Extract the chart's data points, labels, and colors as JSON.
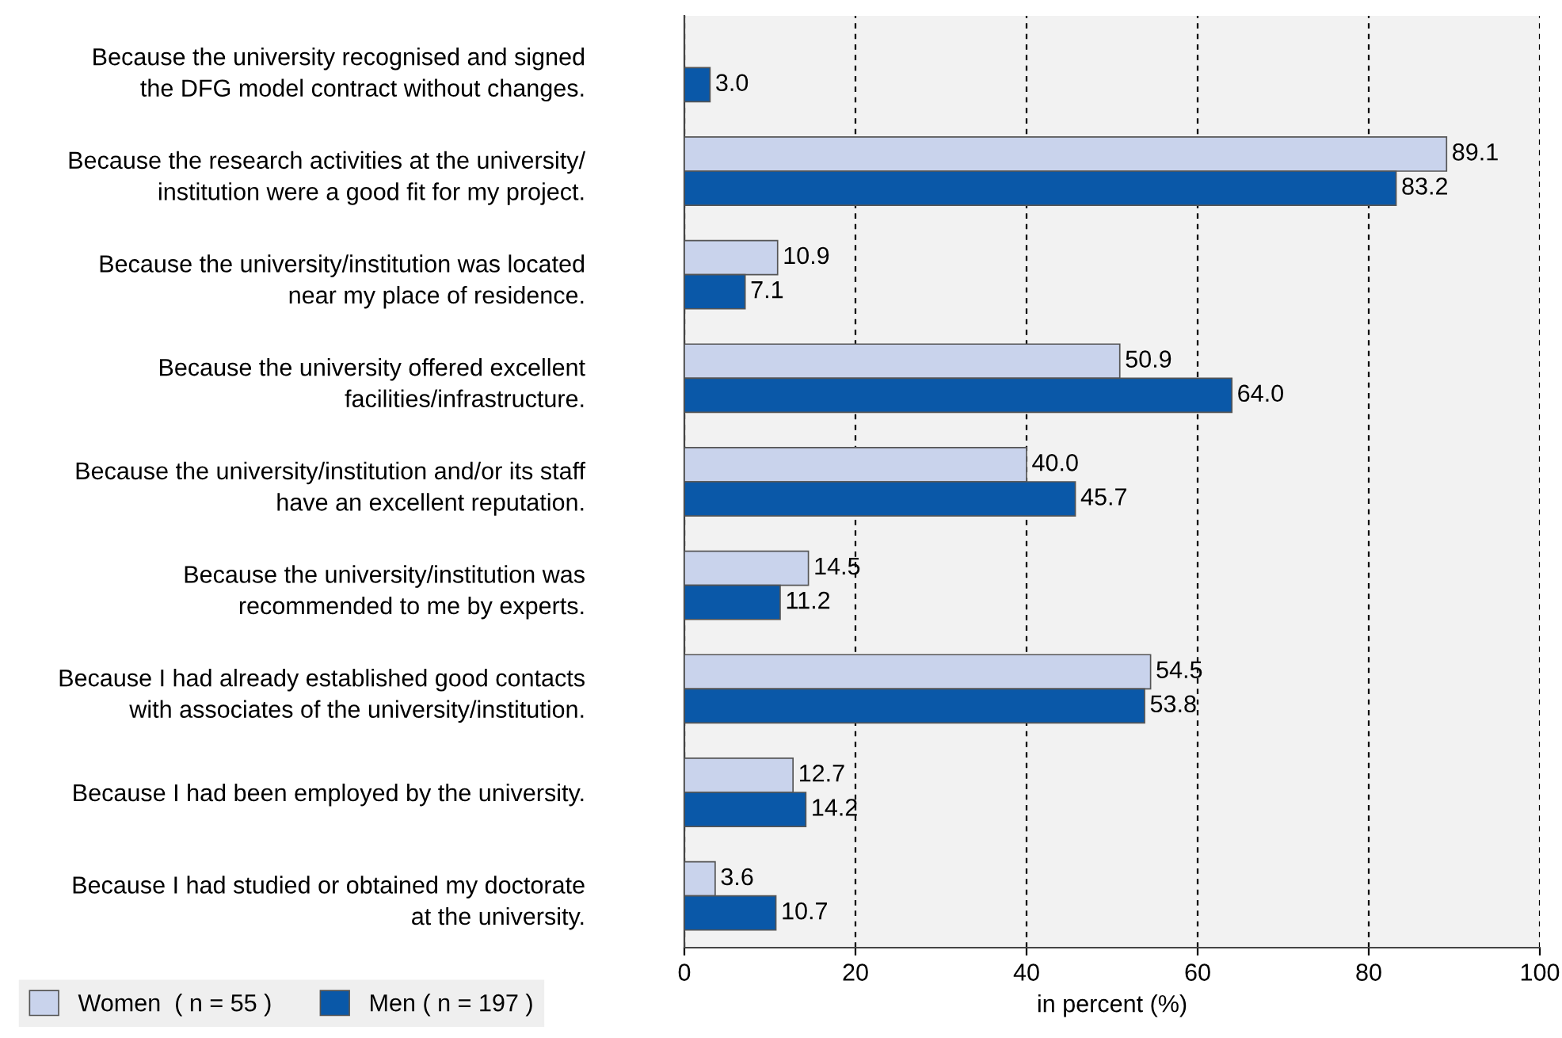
{
  "chart_data": {
    "type": "bar",
    "orientation": "horizontal",
    "categories": [
      "Because the university recognised and signed\nthe DFG model contract without changes.",
      "Because the research activities at the university/\ninstitution were a good fit for my project.",
      "Because the university/institution was located\nnear my place of residence.",
      "Because the university offered excellent\nfacilities/infrastructure.",
      "Because the university/institution and/or its staff\nhave an excellent reputation.",
      "Because the university/institution was\nrecommended to me by experts.",
      "Because I had already established good contacts\nwith associates of the university/institution.",
      "Because I had been employed by the university.",
      "Because I had studied or obtained my doctorate\nat the university."
    ],
    "series": [
      {
        "name": "Women  ( n = 55 )",
        "color": "#c9d3ec",
        "values": [
          null,
          89.1,
          10.9,
          50.9,
          40.0,
          14.5,
          54.5,
          12.7,
          3.6
        ],
        "value_labels": [
          null,
          "89.1",
          "10.9",
          "50.9",
          "40.0",
          "14.5",
          "54.5",
          "12.7",
          "3.6"
        ]
      },
      {
        "name": "Men ( n = 197 )",
        "color": "#0a58a8",
        "values": [
          3.0,
          83.2,
          7.1,
          64.0,
          45.7,
          11.2,
          53.8,
          14.2,
          10.7
        ],
        "value_labels": [
          "3.0",
          "83.2",
          "7.1",
          "64.0",
          "45.7",
          "11.2",
          "53.8",
          "14.2",
          "10.7"
        ]
      }
    ],
    "xlabel": "in percent (%)",
    "xlim": [
      0,
      100
    ],
    "xticks": [
      0,
      20,
      40,
      60,
      80,
      100
    ],
    "grid": "x",
    "legend": "bottom left"
  }
}
